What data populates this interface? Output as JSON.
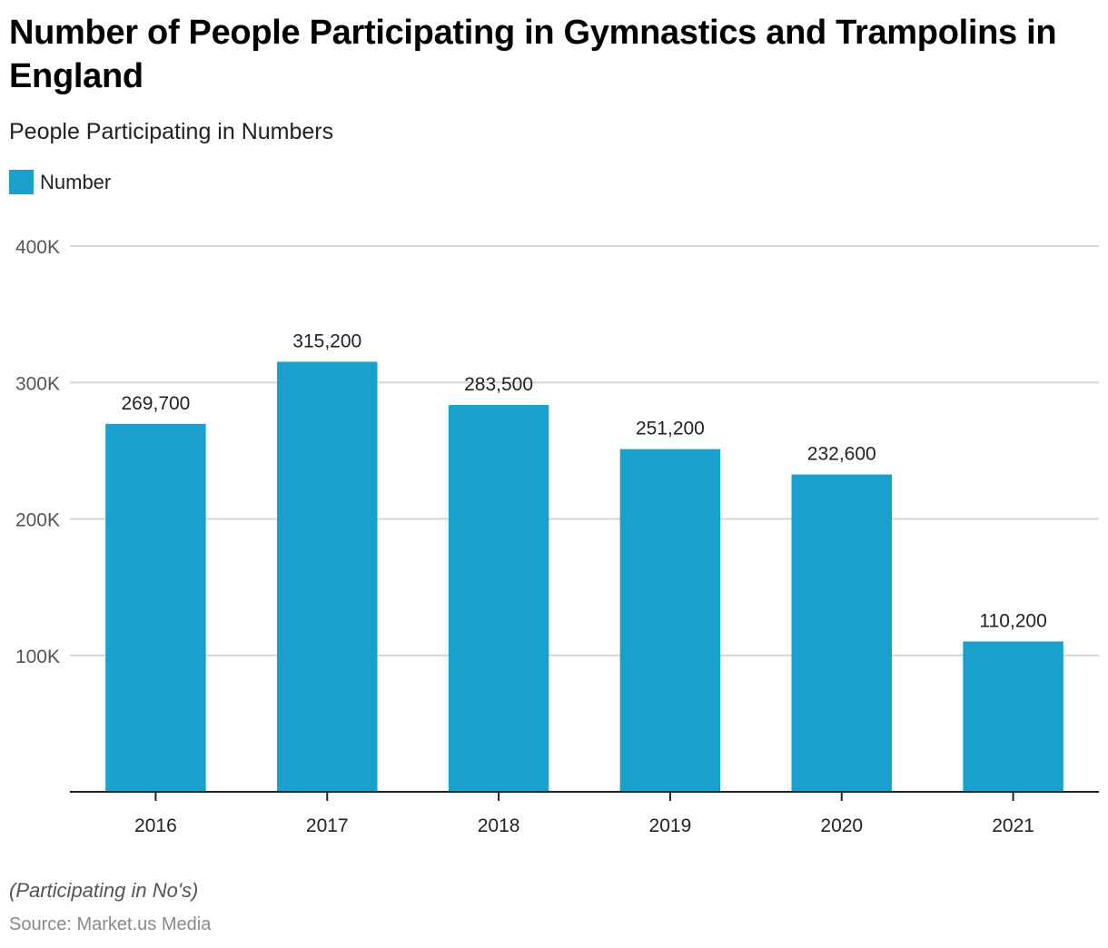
{
  "header": {
    "title": "Number of People Participating in Gymnastics and Trampolins in England",
    "subtitle": "People Participating in Numbers"
  },
  "legend": {
    "label": "Number",
    "color": "#1aa0cd"
  },
  "footer": {
    "note": "(Participating in No's)",
    "source": "Source: Market.us Media"
  },
  "chart_data": {
    "type": "bar",
    "title": "Number of People Participating in Gymnastics and Trampolins in England",
    "subtitle": "People Participating in Numbers",
    "xlabel": "",
    "ylabel": "",
    "categories": [
      "2016",
      "2017",
      "2018",
      "2019",
      "2020",
      "2021"
    ],
    "series": [
      {
        "name": "Number",
        "values": [
          269700,
          315200,
          283500,
          251200,
          232600,
          110200
        ],
        "labels": [
          "269,700",
          "315,200",
          "283,500",
          "251,200",
          "232,600",
          "110,200"
        ]
      }
    ],
    "ylim": [
      0,
      400000
    ],
    "yticks": [
      100000,
      200000,
      300000,
      400000
    ],
    "ytick_labels": [
      "100K",
      "200K",
      "300K",
      "400K"
    ],
    "grid": true,
    "legend_position": "top-left",
    "bar_color": "#1aa0cd"
  }
}
